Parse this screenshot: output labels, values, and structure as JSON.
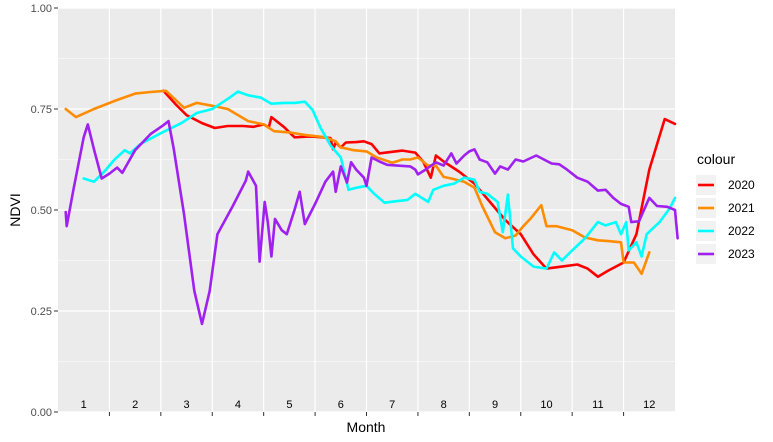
{
  "chart_data": {
    "type": "line",
    "xlabel": "Month",
    "ylabel": "NDVI",
    "xlim": [
      0.5,
      12.5
    ],
    "ylim": [
      0,
      1
    ],
    "x_ticks": [
      1,
      2,
      3,
      4,
      5,
      6,
      7,
      8,
      9,
      10,
      11,
      12
    ],
    "x_tick_labels": [
      "1",
      "2",
      "3",
      "4",
      "5",
      "6",
      "7",
      "8",
      "9",
      "10",
      "11",
      "12"
    ],
    "y_ticks": [
      0,
      0.25,
      0.5,
      0.75,
      1
    ],
    "y_tick_labels": [
      "0.00",
      "0.25",
      "0.50",
      "0.75",
      "1.00"
    ],
    "grid": true,
    "background": "#ebebeb",
    "legend": {
      "title": "colour",
      "position": "right"
    },
    "series": [
      {
        "name": "2020",
        "color": "#ff0000",
        "points": [
          [
            2.55,
            0.795
          ],
          [
            2.8,
            0.76
          ],
          [
            3.0,
            0.735
          ],
          [
            3.3,
            0.715
          ],
          [
            3.55,
            0.703
          ],
          [
            3.8,
            0.708
          ],
          [
            4.1,
            0.708
          ],
          [
            4.3,
            0.706
          ],
          [
            4.5,
            0.712
          ],
          [
            4.6,
            0.704
          ],
          [
            4.65,
            0.73
          ],
          [
            4.9,
            0.705
          ],
          [
            5.1,
            0.68
          ],
          [
            5.4,
            0.682
          ],
          [
            5.65,
            0.68
          ],
          [
            5.8,
            0.678
          ],
          [
            5.85,
            0.65
          ],
          [
            5.9,
            0.667
          ],
          [
            6.0,
            0.655
          ],
          [
            6.1,
            0.667
          ],
          [
            6.3,
            0.668
          ],
          [
            6.45,
            0.67
          ],
          [
            6.6,
            0.663
          ],
          [
            6.75,
            0.64
          ],
          [
            7.0,
            0.644
          ],
          [
            7.2,
            0.647
          ],
          [
            7.45,
            0.642
          ],
          [
            7.6,
            0.62
          ],
          [
            7.75,
            0.58
          ],
          [
            7.85,
            0.635
          ],
          [
            8.0,
            0.62
          ],
          [
            8.3,
            0.595
          ],
          [
            8.6,
            0.565
          ],
          [
            8.9,
            0.52
          ],
          [
            9.2,
            0.475
          ],
          [
            9.5,
            0.44
          ],
          [
            9.75,
            0.39
          ],
          [
            10.0,
            0.355
          ],
          [
            10.3,
            0.36
          ],
          [
            10.6,
            0.365
          ],
          [
            10.8,
            0.355
          ],
          [
            11.0,
            0.335
          ],
          [
            11.2,
            0.35
          ],
          [
            11.5,
            0.37
          ],
          [
            11.75,
            0.44
          ],
          [
            12.0,
            0.6
          ],
          [
            12.3,
            0.725
          ],
          [
            12.5,
            0.713
          ]
        ]
      },
      {
        "name": "2021",
        "color": "#ff8c00",
        "points": [
          [
            0.65,
            0.75
          ],
          [
            0.85,
            0.73
          ],
          [
            1.2,
            0.75
          ],
          [
            1.6,
            0.77
          ],
          [
            2.0,
            0.788
          ],
          [
            2.3,
            0.792
          ],
          [
            2.6,
            0.795
          ],
          [
            2.95,
            0.753
          ],
          [
            3.2,
            0.765
          ],
          [
            3.5,
            0.758
          ],
          [
            3.8,
            0.75
          ],
          [
            4.2,
            0.72
          ],
          [
            4.5,
            0.712
          ],
          [
            4.7,
            0.695
          ],
          [
            5.0,
            0.692
          ],
          [
            5.3,
            0.686
          ],
          [
            5.7,
            0.68
          ],
          [
            5.9,
            0.67
          ],
          [
            6.0,
            0.655
          ],
          [
            6.25,
            0.648
          ],
          [
            6.5,
            0.645
          ],
          [
            6.7,
            0.63
          ],
          [
            7.0,
            0.617
          ],
          [
            7.2,
            0.625
          ],
          [
            7.35,
            0.625
          ],
          [
            7.5,
            0.63
          ],
          [
            7.7,
            0.61
          ],
          [
            7.85,
            0.61
          ],
          [
            8.0,
            0.582
          ],
          [
            8.15,
            0.578
          ],
          [
            8.4,
            0.57
          ],
          [
            8.6,
            0.555
          ],
          [
            8.75,
            0.51
          ],
          [
            9.0,
            0.445
          ],
          [
            9.2,
            0.43
          ],
          [
            9.4,
            0.437
          ],
          [
            9.55,
            0.46
          ],
          [
            9.7,
            0.48
          ],
          [
            9.9,
            0.512
          ],
          [
            10.0,
            0.46
          ],
          [
            10.2,
            0.46
          ],
          [
            10.5,
            0.45
          ],
          [
            10.75,
            0.432
          ],
          [
            11.0,
            0.425
          ],
          [
            11.2,
            0.423
          ],
          [
            11.45,
            0.42
          ],
          [
            11.5,
            0.37
          ],
          [
            11.7,
            0.37
          ],
          [
            11.85,
            0.342
          ],
          [
            12.0,
            0.395
          ]
        ]
      },
      {
        "name": "2022",
        "color": "#00ffff",
        "points": [
          [
            1.0,
            0.578
          ],
          [
            1.2,
            0.57
          ],
          [
            1.4,
            0.595
          ],
          [
            1.6,
            0.625
          ],
          [
            1.8,
            0.648
          ],
          [
            1.9,
            0.64
          ],
          [
            2.1,
            0.663
          ],
          [
            2.5,
            0.69
          ],
          [
            2.9,
            0.715
          ],
          [
            3.2,
            0.74
          ],
          [
            3.5,
            0.75
          ],
          [
            3.8,
            0.775
          ],
          [
            4.0,
            0.793
          ],
          [
            4.2,
            0.784
          ],
          [
            4.45,
            0.778
          ],
          [
            4.65,
            0.763
          ],
          [
            4.9,
            0.765
          ],
          [
            5.1,
            0.765
          ],
          [
            5.3,
            0.768
          ],
          [
            5.45,
            0.748
          ],
          [
            5.6,
            0.705
          ],
          [
            5.8,
            0.66
          ],
          [
            6.0,
            0.63
          ],
          [
            6.15,
            0.55
          ],
          [
            6.3,
            0.555
          ],
          [
            6.5,
            0.56
          ],
          [
            6.65,
            0.54
          ],
          [
            6.85,
            0.518
          ],
          [
            7.1,
            0.522
          ],
          [
            7.3,
            0.525
          ],
          [
            7.45,
            0.54
          ],
          [
            7.7,
            0.52
          ],
          [
            7.8,
            0.55
          ],
          [
            8.0,
            0.56
          ],
          [
            8.2,
            0.565
          ],
          [
            8.4,
            0.58
          ],
          [
            8.6,
            0.575
          ],
          [
            8.7,
            0.545
          ],
          [
            8.85,
            0.54
          ],
          [
            9.05,
            0.52
          ],
          [
            9.15,
            0.445
          ],
          [
            9.25,
            0.538
          ],
          [
            9.35,
            0.405
          ],
          [
            9.5,
            0.385
          ],
          [
            9.75,
            0.36
          ],
          [
            10.0,
            0.355
          ],
          [
            10.15,
            0.395
          ],
          [
            10.3,
            0.375
          ],
          [
            10.5,
            0.4
          ],
          [
            10.75,
            0.43
          ],
          [
            11.0,
            0.47
          ],
          [
            11.15,
            0.462
          ],
          [
            11.35,
            0.47
          ],
          [
            11.45,
            0.44
          ],
          [
            11.55,
            0.47
          ],
          [
            11.6,
            0.4
          ],
          [
            11.75,
            0.42
          ],
          [
            11.85,
            0.385
          ],
          [
            11.95,
            0.44
          ],
          [
            12.2,
            0.47
          ],
          [
            12.4,
            0.505
          ],
          [
            12.5,
            0.53
          ]
        ]
      },
      {
        "name": "2023",
        "color": "#a020f0",
        "points": [
          [
            0.65,
            0.495
          ],
          [
            0.67,
            0.46
          ],
          [
            0.8,
            0.55
          ],
          [
            1.0,
            0.68
          ],
          [
            1.08,
            0.712
          ],
          [
            1.2,
            0.65
          ],
          [
            1.35,
            0.578
          ],
          [
            1.5,
            0.59
          ],
          [
            1.65,
            0.605
          ],
          [
            1.75,
            0.592
          ],
          [
            2.0,
            0.648
          ],
          [
            2.3,
            0.688
          ],
          [
            2.55,
            0.71
          ],
          [
            2.65,
            0.72
          ],
          [
            2.75,
            0.652
          ],
          [
            2.95,
            0.49
          ],
          [
            3.15,
            0.3
          ],
          [
            3.3,
            0.218
          ],
          [
            3.45,
            0.3
          ],
          [
            3.6,
            0.44
          ],
          [
            3.9,
            0.51
          ],
          [
            4.15,
            0.572
          ],
          [
            4.2,
            0.595
          ],
          [
            4.35,
            0.56
          ],
          [
            4.42,
            0.372
          ],
          [
            4.52,
            0.52
          ],
          [
            4.58,
            0.47
          ],
          [
            4.65,
            0.385
          ],
          [
            4.72,
            0.478
          ],
          [
            4.85,
            0.45
          ],
          [
            4.95,
            0.44
          ],
          [
            5.1,
            0.5
          ],
          [
            5.2,
            0.545
          ],
          [
            5.3,
            0.465
          ],
          [
            5.5,
            0.515
          ],
          [
            5.7,
            0.57
          ],
          [
            5.85,
            0.595
          ],
          [
            5.9,
            0.545
          ],
          [
            6.0,
            0.608
          ],
          [
            6.12,
            0.568
          ],
          [
            6.2,
            0.618
          ],
          [
            6.3,
            0.6
          ],
          [
            6.45,
            0.58
          ],
          [
            6.5,
            0.56
          ],
          [
            6.6,
            0.63
          ],
          [
            6.75,
            0.62
          ],
          [
            6.9,
            0.612
          ],
          [
            7.1,
            0.61
          ],
          [
            7.35,
            0.608
          ],
          [
            7.45,
            0.6
          ],
          [
            7.5,
            0.588
          ],
          [
            7.65,
            0.6
          ],
          [
            7.85,
            0.618
          ],
          [
            8.0,
            0.61
          ],
          [
            8.15,
            0.64
          ],
          [
            8.25,
            0.615
          ],
          [
            8.4,
            0.635
          ],
          [
            8.5,
            0.645
          ],
          [
            8.6,
            0.65
          ],
          [
            8.7,
            0.625
          ],
          [
            8.85,
            0.618
          ],
          [
            9.0,
            0.59
          ],
          [
            9.1,
            0.608
          ],
          [
            9.25,
            0.6
          ],
          [
            9.4,
            0.625
          ],
          [
            9.55,
            0.62
          ],
          [
            9.8,
            0.635
          ],
          [
            9.95,
            0.625
          ],
          [
            10.1,
            0.615
          ],
          [
            10.25,
            0.613
          ],
          [
            10.4,
            0.6
          ],
          [
            10.6,
            0.58
          ],
          [
            10.8,
            0.57
          ],
          [
            11.0,
            0.548
          ],
          [
            11.15,
            0.55
          ],
          [
            11.3,
            0.53
          ],
          [
            11.45,
            0.515
          ],
          [
            11.6,
            0.508
          ],
          [
            11.65,
            0.47
          ],
          [
            11.8,
            0.472
          ],
          [
            12.0,
            0.53
          ],
          [
            12.15,
            0.51
          ],
          [
            12.35,
            0.508
          ],
          [
            12.5,
            0.5
          ],
          [
            12.55,
            0.43
          ]
        ]
      }
    ]
  }
}
